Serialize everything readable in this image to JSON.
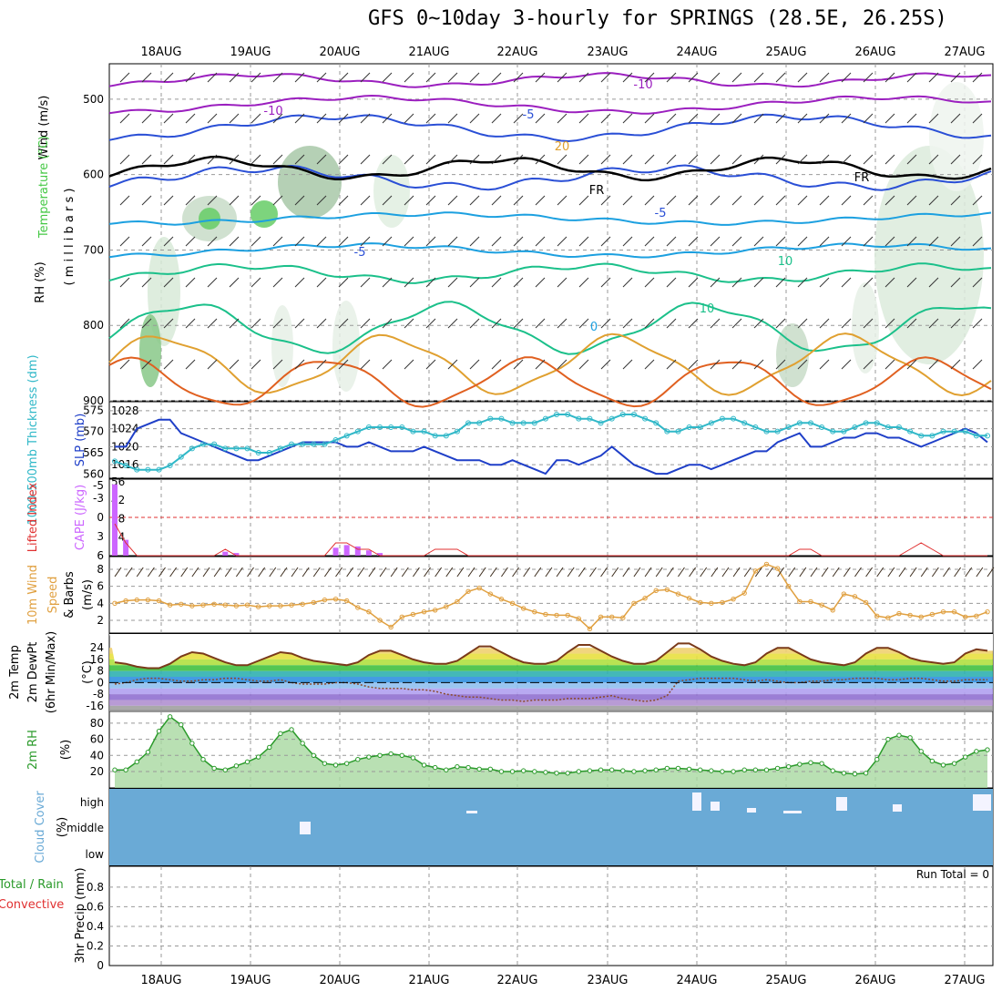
{
  "title": "GFS 0~10day 3-hourly for SPRINGS (28.5E, 26.25S)",
  "dates": [
    "18AUG",
    "19AUG",
    "20AUG",
    "21AUG",
    "22AUG",
    "23AUG",
    "24AUG",
    "25AUG",
    "26AUG",
    "27AUG"
  ],
  "colors": {
    "grid": "#999999",
    "rh_green": "#44c844",
    "temp_purple": "#9b1fbf",
    "temp_blue": "#2a4fd6",
    "temp_cyan": "#1ca0e0",
    "temp_green": "#1bc08a",
    "temp_orange": "#e0a030",
    "slp": "#1f3fc8",
    "thick": "#30b8c8",
    "cape": "#cc66ff",
    "li": "#e03030",
    "wind": "#e0a040",
    "rh2m": "#2a9a2a",
    "cloud": "#6aaad6"
  },
  "chart_data": [
    {
      "type": "contour",
      "panel": "upper-air",
      "ylabels": [
        "Wind (m/s)",
        "Temperature (°C)",
        "RH (%)",
        "( m i l l i b a r s )"
      ],
      "yticks": [
        "500",
        "600",
        "700",
        "800",
        "900"
      ],
      "contour_labels": [
        "-10",
        "-10",
        "-5",
        "-5",
        "-5",
        "10",
        "10",
        "0",
        "20",
        "FR",
        "FR",
        "-10"
      ]
    },
    {
      "type": "line",
      "panel": "slp-thickness",
      "ylabels": [
        "1000-500mb Thickness (dm)",
        "SLP (mb)"
      ],
      "left_ticks": [
        "575",
        "570",
        "565",
        "560"
      ],
      "right_ticks": [
        "1028",
        "1024",
        "1020",
        "1016"
      ],
      "series": [
        {
          "name": "SLP (mb)",
          "values": [
            1020,
            1020,
            1024,
            1025,
            1026,
            1026,
            1023,
            1022,
            1021,
            1020,
            1019,
            1018,
            1017,
            1017,
            1018,
            1019,
            1020,
            1021,
            1021,
            1021,
            1021,
            1020,
            1020,
            1021,
            1020,
            1019,
            1019,
            1019,
            1020,
            1019,
            1018,
            1017,
            1017,
            1017,
            1016,
            1016,
            1017,
            1016,
            1015,
            1014,
            1017,
            1017,
            1016,
            1017,
            1018,
            1020,
            1018,
            1016,
            1015,
            1014,
            1014,
            1015,
            1016,
            1016,
            1015,
            1016,
            1017,
            1018,
            1019,
            1019,
            1021,
            1022,
            1023,
            1020,
            1020,
            1021,
            1022,
            1022,
            1023,
            1023,
            1022,
            1022,
            1021,
            1020,
            1021,
            1022,
            1023,
            1024,
            1023,
            1021
          ]
        },
        {
          "name": "1000-500mb Thickness (dm)",
          "values": [
            563,
            562,
            561,
            561,
            561,
            562,
            564,
            566,
            567,
            567,
            566,
            566,
            566,
            565,
            565,
            566,
            567,
            567,
            567,
            567,
            568,
            569,
            570,
            571,
            571,
            571,
            571,
            570,
            570,
            569,
            569,
            570,
            572,
            572,
            573,
            573,
            572,
            572,
            572,
            573,
            574,
            574,
            573,
            573,
            572,
            573,
            574,
            574,
            573,
            572,
            570,
            570,
            571,
            571,
            572,
            573,
            573,
            572,
            571,
            570,
            570,
            571,
            572,
            572,
            571,
            570,
            570,
            571,
            572,
            572,
            571,
            571,
            570,
            569,
            569,
            570,
            570,
            570,
            569,
            569
          ]
        }
      ]
    },
    {
      "type": "bar",
      "panel": "cape-li",
      "ylabels": [
        "Lifted Index",
        "CAPE (J/kg)"
      ],
      "left_ticks": [
        "-5",
        "-3",
        "0",
        "3",
        "6"
      ],
      "right_ticks": [
        "56",
        "42",
        "28",
        "14"
      ],
      "series": [
        {
          "name": "CAPE (J/kg)",
          "values": [
            54,
            12,
            0,
            0,
            0,
            0,
            0,
            0,
            0,
            0,
            3,
            2,
            0,
            0,
            0,
            0,
            0,
            0,
            0,
            0,
            6,
            8,
            7,
            4,
            2,
            0,
            0,
            0,
            0,
            0,
            0,
            0,
            0,
            0,
            0,
            0,
            0,
            0,
            0,
            0,
            0,
            0,
            0,
            0,
            0,
            0,
            0,
            0,
            0,
            0,
            0,
            0,
            0,
            0,
            0,
            0,
            0,
            0,
            0,
            0,
            0,
            0,
            0,
            0,
            0,
            0,
            0,
            0,
            0,
            0,
            0,
            0,
            0,
            0,
            0,
            0,
            0,
            0,
            0,
            0
          ]
        },
        {
          "name": "Lifted Index",
          "values": [
            1,
            4,
            6,
            6,
            6,
            6,
            6,
            6,
            6,
            6,
            5,
            6,
            6,
            6,
            6,
            6,
            6,
            6,
            6,
            6,
            4,
            4,
            5,
            5,
            6,
            6,
            6,
            6,
            6,
            5,
            5,
            5,
            6,
            6,
            6,
            6,
            6,
            6,
            6,
            6,
            6,
            6,
            6,
            6,
            6,
            6,
            6,
            6,
            6,
            6,
            6,
            6,
            6,
            6,
            6,
            6,
            6,
            6,
            6,
            6,
            6,
            6,
            5,
            5,
            6,
            6,
            6,
            6,
            6,
            6,
            6,
            6,
            5,
            4,
            5,
            6,
            6,
            6,
            6,
            6
          ]
        }
      ]
    },
    {
      "type": "line",
      "panel": "10m-wind",
      "ylabels": [
        "10m Wind",
        "Speed",
        "& Barbs",
        "(m/s)"
      ],
      "yticks": [
        "8",
        "6",
        "4",
        "2"
      ],
      "series": [
        {
          "name": "10m Wind Speed",
          "values": [
            4,
            4.3,
            4.4,
            4.4,
            4.3,
            3.8,
            3.9,
            3.7,
            3.8,
            3.9,
            3.8,
            3.7,
            3.8,
            3.6,
            3.7,
            3.7,
            3.8,
            3.9,
            4.1,
            4.4,
            4.5,
            4.3,
            3.5,
            3.0,
            2.0,
            1.2,
            2.4,
            2.7,
            3.0,
            3.2,
            3.6,
            4.2,
            5.4,
            5.8,
            5.1,
            4.5,
            4.0,
            3.4,
            3.0,
            2.7,
            2.6,
            2.6,
            2.2,
            1.0,
            2.4,
            2.4,
            2.3,
            4.0,
            4.6,
            5.5,
            5.6,
            5.1,
            4.6,
            4.1,
            4.0,
            4.1,
            4.5,
            5.2,
            7.8,
            8.6,
            8.1,
            6.0,
            4.2,
            4.2,
            3.8,
            3.2,
            5.1,
            4.8,
            4.1,
            2.5,
            2.3,
            2.8,
            2.6,
            2.4,
            2.7,
            3.0,
            3.0,
            2.4,
            2.5,
            3.0
          ]
        }
      ]
    },
    {
      "type": "area",
      "panel": "2m-temp",
      "ylabels": [
        "2m Temp",
        "2m DewPt",
        "(6hr Min/Max)",
        "(°C)"
      ],
      "yticks": [
        "24",
        "16",
        "8",
        "0",
        "-8",
        "-16"
      ],
      "series": [
        {
          "name": "2m Temp",
          "values": [
            14,
            13,
            11,
            10,
            10,
            13,
            18,
            21,
            20,
            17,
            14,
            12,
            12,
            15,
            18,
            21,
            20,
            17,
            15,
            14,
            13,
            12,
            14,
            19,
            22,
            22,
            19,
            16,
            14,
            13,
            13,
            15,
            20,
            25,
            25,
            21,
            17,
            14,
            13,
            13,
            15,
            21,
            26,
            26,
            22,
            18,
            15,
            13,
            13,
            15,
            21,
            27,
            27,
            23,
            18,
            15,
            13,
            12,
            14,
            20,
            24,
            24,
            20,
            16,
            14,
            13,
            12,
            14,
            20,
            24,
            24,
            21,
            17,
            15,
            14,
            13,
            14,
            20,
            23,
            22
          ]
        },
        {
          "name": "2m DewPt",
          "values": [
            -1,
            0,
            2,
            3,
            3,
            2,
            1,
            1,
            2,
            2,
            3,
            3,
            2,
            1,
            1,
            2,
            0,
            -1,
            -1,
            -1,
            0,
            0,
            -1,
            -3,
            -4,
            -4,
            -4,
            -5,
            -5,
            -6,
            -8,
            -9,
            -10,
            -10,
            -11,
            -12,
            -12,
            -13,
            -12,
            -12,
            -12,
            -11,
            -11,
            -11,
            -10,
            -9,
            -11,
            -12,
            -13,
            -12,
            -9,
            1,
            2,
            3,
            3,
            3,
            3,
            2,
            1,
            2,
            1,
            0,
            0,
            1,
            1,
            2,
            2,
            3,
            3,
            3,
            2,
            2,
            3,
            3,
            2,
            1,
            1,
            2,
            2,
            2
          ]
        }
      ]
    },
    {
      "type": "area",
      "panel": "2m-rh",
      "ylabels": [
        "2m RH",
        "(%)"
      ],
      "yticks": [
        "80",
        "60",
        "40",
        "20"
      ],
      "series": [
        {
          "name": "2m RH",
          "values": [
            22,
            22,
            32,
            44,
            70,
            88,
            78,
            55,
            35,
            24,
            22,
            27,
            32,
            38,
            50,
            67,
            72,
            55,
            40,
            30,
            28,
            30,
            35,
            38,
            40,
            42,
            40,
            37,
            28,
            25,
            22,
            26,
            25,
            23,
            23,
            20,
            20,
            21,
            20,
            19,
            18,
            18,
            20,
            21,
            22,
            22,
            21,
            20,
            21,
            22,
            24,
            24,
            23,
            22,
            21,
            20,
            20,
            22,
            22,
            22,
            24,
            26,
            29,
            31,
            30,
            21,
            18,
            17,
            18,
            35,
            60,
            65,
            62,
            45,
            33,
            28,
            30,
            38,
            45,
            47
          ]
        }
      ]
    },
    {
      "type": "heatmap",
      "panel": "cloud-cover",
      "ylabels": [
        "Cloud Cover",
        "(%)"
      ],
      "levels": [
        "high",
        "middle",
        "low"
      ]
    },
    {
      "type": "bar",
      "panel": "precip",
      "ylabels": [
        "Total / Rain",
        "Convective",
        "3hr Precip (mm)"
      ],
      "yticks": [
        "0.8",
        "0.6",
        "0.4",
        "0.2",
        "0"
      ],
      "run_total_label": "Run Total = 0",
      "series": [
        {
          "name": "3hr Precip",
          "values": []
        }
      ]
    }
  ]
}
